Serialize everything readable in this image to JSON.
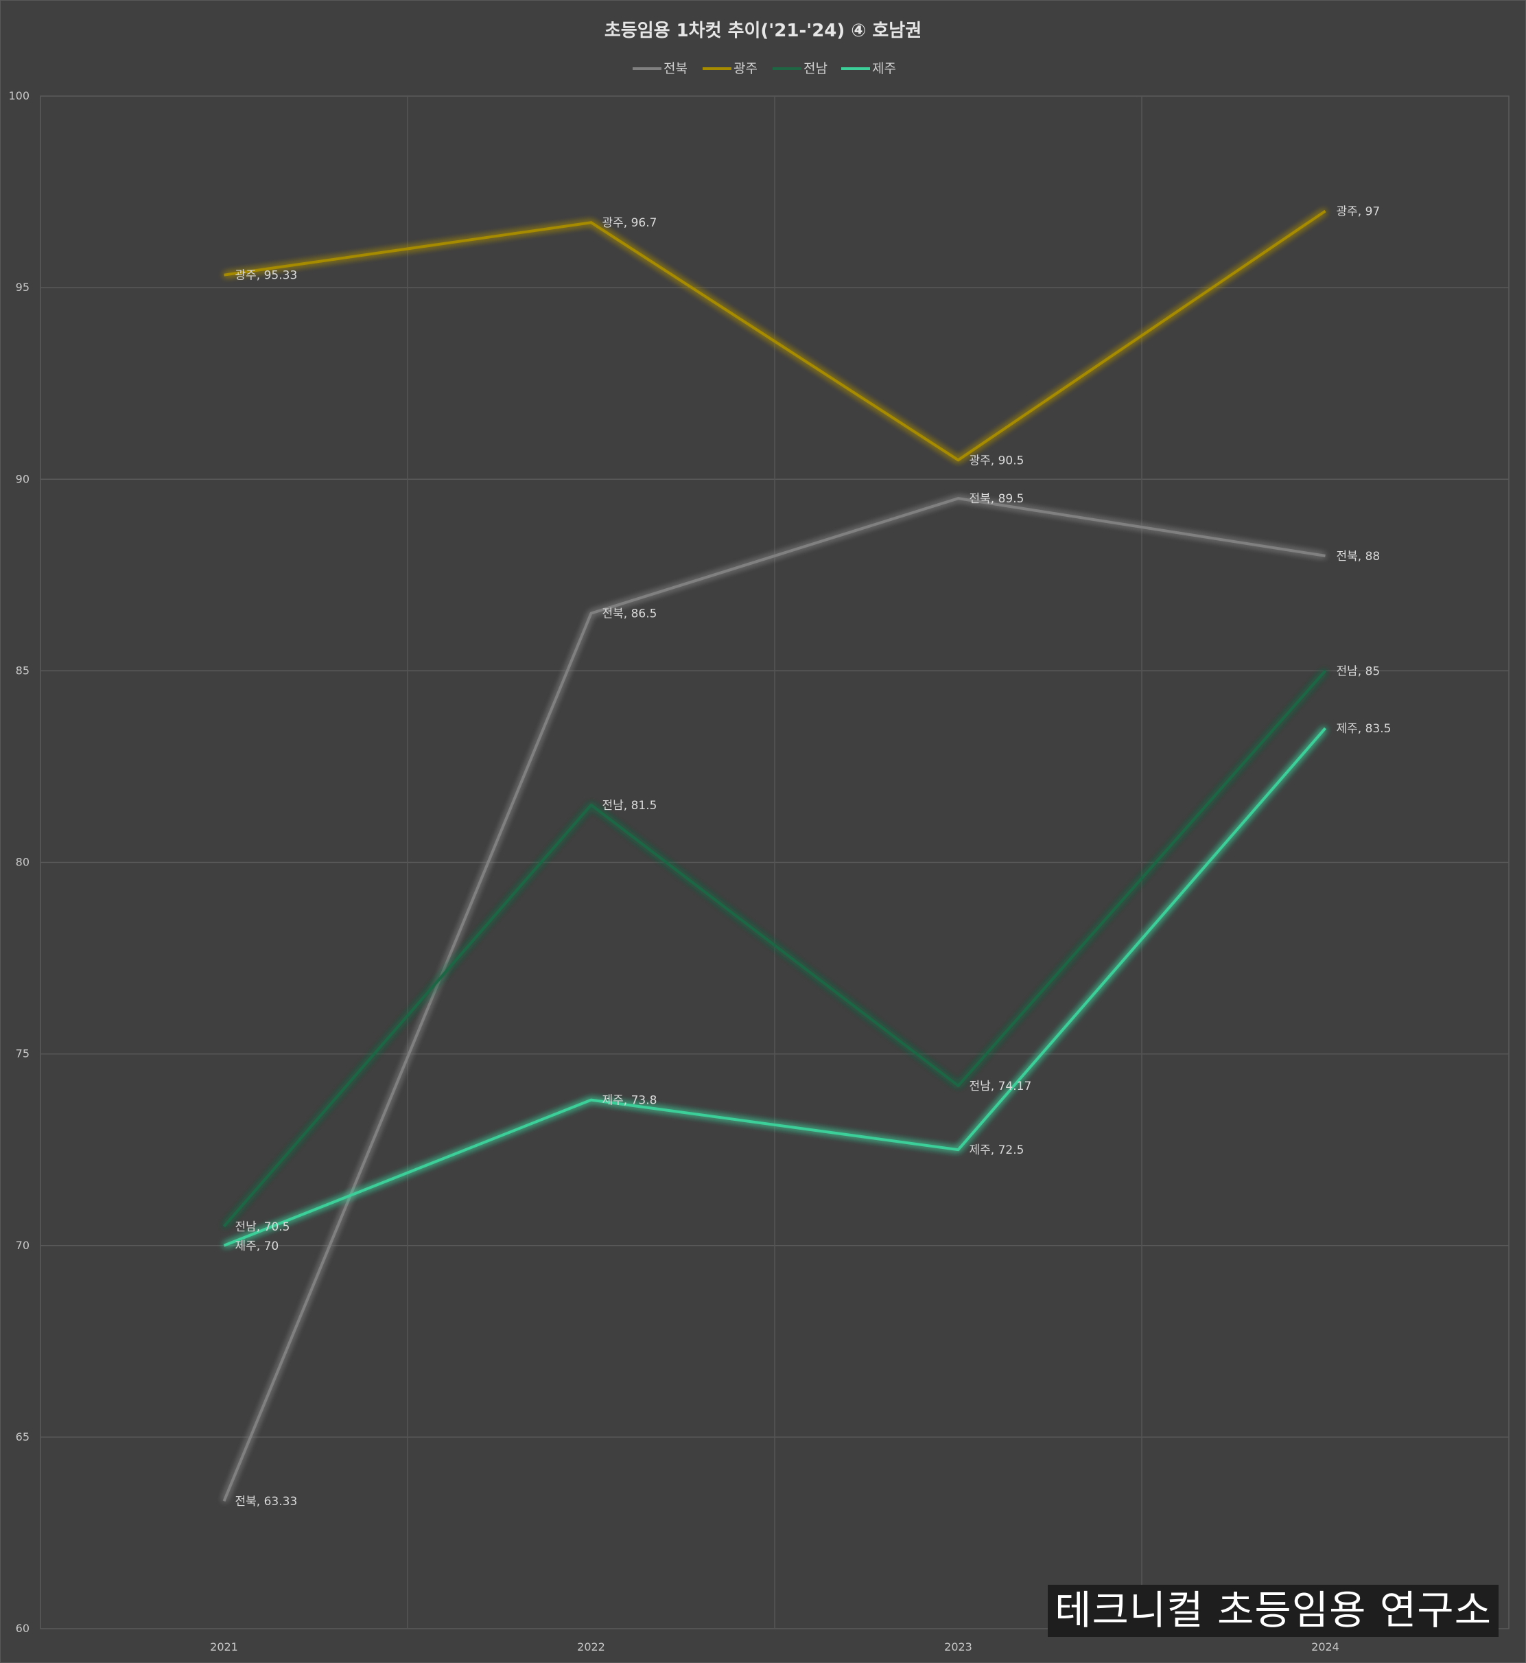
{
  "chart_data": {
    "type": "line",
    "title": "초등임용 1차컷 추이('21-'24) ④ 호남권",
    "categories": [
      "2021",
      "2022",
      "2023",
      "2024"
    ],
    "ylim": [
      60,
      100
    ],
    "yticks": [
      60,
      65,
      70,
      75,
      80,
      85,
      90,
      95,
      100
    ],
    "grid": true,
    "legend_position": "top-center",
    "series": [
      {
        "name": "전북",
        "color": "#808080",
        "values": [
          63.33,
          86.5,
          89.5,
          88
        ],
        "labels": [
          "전북, 63.33",
          "전북, 86.5",
          "전북, 89.5",
          "전북, 88"
        ]
      },
      {
        "name": "광주",
        "color": "#a68a00",
        "values": [
          95.33,
          96.7,
          90.5,
          97
        ],
        "labels": [
          "광주, 95.33",
          "광주, 96.7",
          "광주, 90.5",
          "광주, 97"
        ]
      },
      {
        "name": "전남",
        "color": "#1f6644",
        "values": [
          70.5,
          81.5,
          74.17,
          85
        ],
        "labels": [
          "전남, 70.5",
          "전남, 81.5",
          "전남, 74.17",
          "전남, 85"
        ]
      },
      {
        "name": "제주",
        "color": "#3ccf9a",
        "values": [
          70,
          73.8,
          72.5,
          83.5
        ],
        "labels": [
          "제주, 70",
          "제주, 73.8",
          "제주, 72.5",
          "제주, 83.5"
        ]
      }
    ]
  },
  "watermark": "테크니컬 초등임용 연구소"
}
